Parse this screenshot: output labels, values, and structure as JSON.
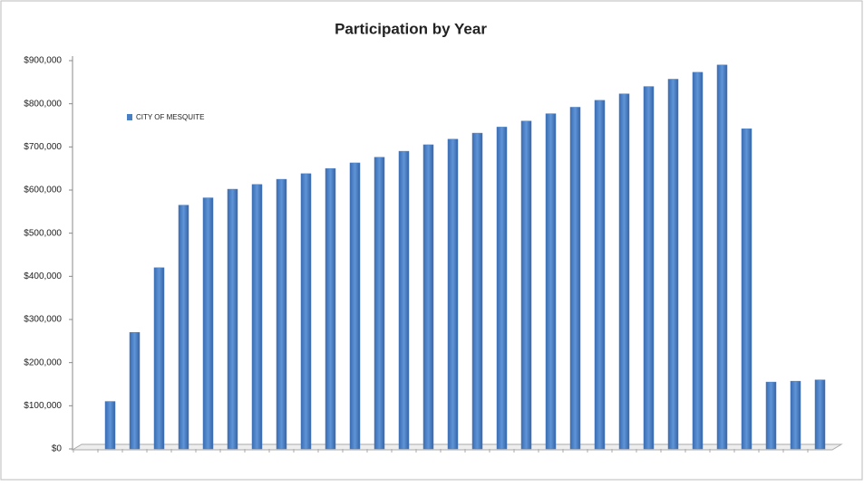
{
  "chart_data": {
    "type": "bar",
    "title": "Participation by Year",
    "categories": [
      null,
      null,
      null,
      null,
      null,
      null,
      null,
      null,
      null,
      null,
      null,
      null,
      null,
      null,
      null,
      null,
      null,
      null,
      null,
      null,
      null,
      null,
      null,
      null,
      null,
      null,
      null,
      null,
      null,
      null,
      null
    ],
    "series": [
      {
        "name": "CITY OF MESQUITE",
        "color": "#4a7fc4",
        "values": [
          0,
          110000,
          270000,
          420000,
          565000,
          582000,
          602000,
          613000,
          625000,
          638000,
          650000,
          663000,
          676000,
          690000,
          705000,
          718000,
          732000,
          746000,
          760000,
          777000,
          792000,
          808000,
          823000,
          840000,
          857000,
          873000,
          890000,
          742000,
          155000,
          157000,
          160000
        ]
      }
    ],
    "ylim": [
      0,
      900000
    ],
    "yticks": [
      {
        "value": 0,
        "label": "$0"
      },
      {
        "value": 100000,
        "label": "$100,000"
      },
      {
        "value": 200000,
        "label": "$200,000"
      },
      {
        "value": 300000,
        "label": "$300,000"
      },
      {
        "value": 400000,
        "label": "$400,000"
      },
      {
        "value": 500000,
        "label": "$500,000"
      },
      {
        "value": 600000,
        "label": "$600,000"
      },
      {
        "value": 700000,
        "label": "$700,000"
      },
      {
        "value": 800000,
        "label": "$800,000"
      },
      {
        "value": 900000,
        "label": "$900,000"
      }
    ],
    "grid": false,
    "legend": "upper left"
  }
}
